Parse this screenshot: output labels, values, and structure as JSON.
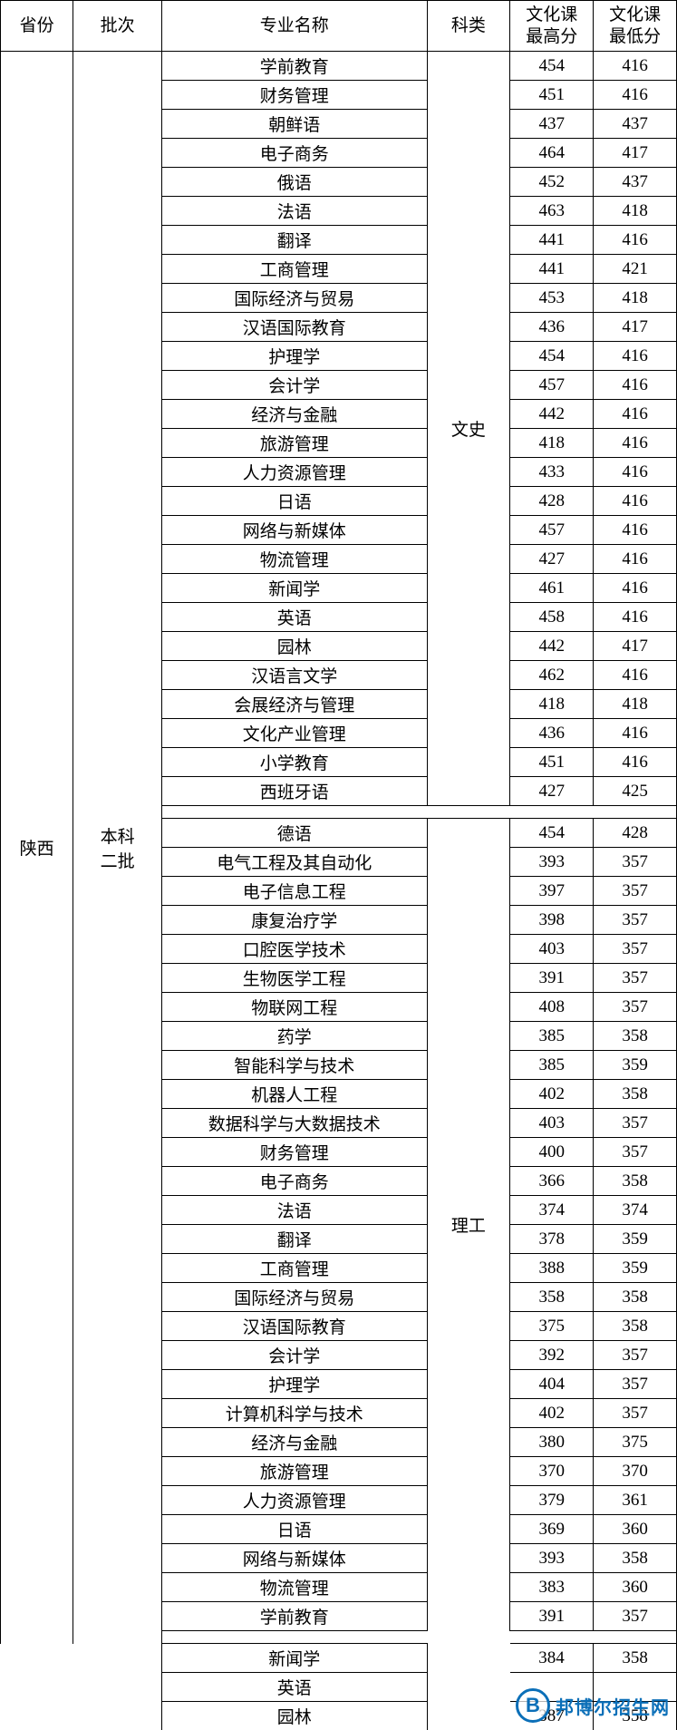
{
  "header": {
    "province": "省份",
    "batch": "批次",
    "major": "专业名称",
    "subject": "科类",
    "high": "文化课\n最高分",
    "low": "文化课\n最低分"
  },
  "province_value": "陕西",
  "batch_value": "本科\n二批",
  "subject1": "文史",
  "subject2": "理工",
  "group1": [
    {
      "major": "学前教育",
      "high": "454",
      "low": "416"
    },
    {
      "major": "财务管理",
      "high": "451",
      "low": "416"
    },
    {
      "major": "朝鲜语",
      "high": "437",
      "low": "437"
    },
    {
      "major": "电子商务",
      "high": "464",
      "low": "417"
    },
    {
      "major": "俄语",
      "high": "452",
      "low": "437"
    },
    {
      "major": "法语",
      "high": "463",
      "low": "418"
    },
    {
      "major": "翻译",
      "high": "441",
      "low": "416"
    },
    {
      "major": "工商管理",
      "high": "441",
      "low": "421"
    },
    {
      "major": "国际经济与贸易",
      "high": "453",
      "low": "418"
    },
    {
      "major": "汉语国际教育",
      "high": "436",
      "low": "417"
    },
    {
      "major": "护理学",
      "high": "454",
      "low": "416"
    },
    {
      "major": "会计学",
      "high": "457",
      "low": "416"
    },
    {
      "major": "经济与金融",
      "high": "442",
      "low": "416"
    },
    {
      "major": "旅游管理",
      "high": "418",
      "low": "416"
    },
    {
      "major": "人力资源管理",
      "high": "433",
      "low": "416"
    },
    {
      "major": "日语",
      "high": "428",
      "low": "416"
    },
    {
      "major": "网络与新媒体",
      "high": "457",
      "low": "416"
    },
    {
      "major": "物流管理",
      "high": "427",
      "low": "416"
    },
    {
      "major": "新闻学",
      "high": "461",
      "low": "416"
    },
    {
      "major": "英语",
      "high": "458",
      "low": "416"
    },
    {
      "major": "园林",
      "high": "442",
      "low": "417"
    },
    {
      "major": "汉语言文学",
      "high": "462",
      "low": "416"
    },
    {
      "major": "会展经济与管理",
      "high": "418",
      "low": "418"
    },
    {
      "major": "文化产业管理",
      "high": "436",
      "low": "416"
    },
    {
      "major": "小学教育",
      "high": "451",
      "low": "416"
    },
    {
      "major": "西班牙语",
      "high": "427",
      "low": "425"
    }
  ],
  "group2_first": {
    "major": "德语",
    "high": "454",
    "low": "428"
  },
  "group2": [
    {
      "major": "电气工程及其自动化",
      "high": "393",
      "low": "357"
    },
    {
      "major": "电子信息工程",
      "high": "397",
      "low": "357"
    },
    {
      "major": "康复治疗学",
      "high": "398",
      "low": "357"
    },
    {
      "major": "口腔医学技术",
      "high": "403",
      "low": "357"
    },
    {
      "major": "生物医学工程",
      "high": "391",
      "low": "357"
    },
    {
      "major": "物联网工程",
      "high": "408",
      "low": "357"
    },
    {
      "major": "药学",
      "high": "385",
      "low": "358"
    },
    {
      "major": "智能科学与技术",
      "high": "385",
      "low": "359"
    },
    {
      "major": "机器人工程",
      "high": "402",
      "low": "358"
    },
    {
      "major": "数据科学与大数据技术",
      "high": "403",
      "low": "357"
    },
    {
      "major": "财务管理",
      "high": "400",
      "low": "357"
    },
    {
      "major": "电子商务",
      "high": "366",
      "low": "358"
    },
    {
      "major": "法语",
      "high": "374",
      "low": "374"
    },
    {
      "major": "翻译",
      "high": "378",
      "low": "359"
    },
    {
      "major": "工商管理",
      "high": "388",
      "low": "359"
    },
    {
      "major": "国际经济与贸易",
      "high": "358",
      "low": "358"
    },
    {
      "major": "汉语国际教育",
      "high": "375",
      "low": "358"
    },
    {
      "major": "会计学",
      "high": "392",
      "low": "357"
    },
    {
      "major": "护理学",
      "high": "404",
      "low": "357"
    },
    {
      "major": "计算机科学与技术",
      "high": "402",
      "low": "357"
    },
    {
      "major": "经济与金融",
      "high": "380",
      "low": "375"
    },
    {
      "major": "旅游管理",
      "high": "370",
      "low": "370"
    },
    {
      "major": "人力资源管理",
      "high": "379",
      "low": "361"
    },
    {
      "major": "日语",
      "high": "369",
      "low": "360"
    },
    {
      "major": "网络与新媒体",
      "high": "393",
      "low": "358"
    },
    {
      "major": "物流管理",
      "high": "383",
      "low": "360"
    },
    {
      "major": "学前教育",
      "high": "391",
      "low": "357"
    }
  ],
  "group3": [
    {
      "major": "新闻学",
      "high": "384",
      "low": "358"
    },
    {
      "major": "英语",
      "high": "",
      "low": ""
    },
    {
      "major": "园林",
      "high": "387",
      "low": "358"
    }
  ],
  "watermark": {
    "logo": "B",
    "text": "邦博尔招生网"
  },
  "styling": {
    "border_color": "#000000",
    "background_color": "#ffffff",
    "text_color": "#000000",
    "watermark_color": "#0b6fb8",
    "font_family": "SimSun",
    "cell_font_size": 19,
    "header_row_height": 56,
    "data_row_height": 29
  }
}
